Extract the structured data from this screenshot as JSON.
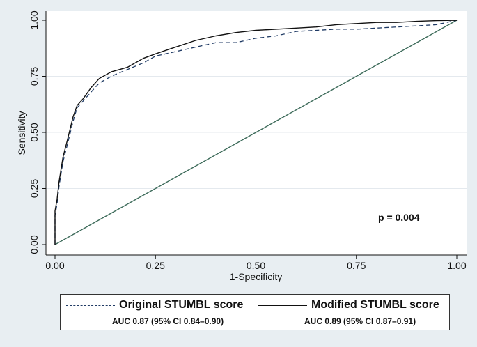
{
  "chart_data": {
    "type": "line",
    "xlabel": "1-Specificity",
    "ylabel": "Sensitivity",
    "xlim": [
      0,
      1
    ],
    "ylim": [
      0,
      1
    ],
    "x_ticks": [
      "0.00",
      "0.25",
      "0.50",
      "0.75",
      "1.00"
    ],
    "y_ticks": [
      "0.00",
      "0.25",
      "0.50",
      "0.75",
      "1.00"
    ],
    "annotation": "p = 0.004",
    "legend_position": "bottom",
    "series": [
      {
        "name": "Original STUMBL score",
        "auc_label": "AUC 0.87 (95% CI 0.84–0.90)",
        "style": "dashed",
        "color": "#1f3a64",
        "x": [
          0,
          0,
          0.005,
          0.01,
          0.02,
          0.03,
          0.045,
          0.055,
          0.07,
          0.09,
          0.11,
          0.14,
          0.18,
          0.22,
          0.25,
          0.3,
          0.35,
          0.4,
          0.45,
          0.5,
          0.55,
          0.6,
          0.65,
          0.7,
          0.75,
          0.8,
          0.85,
          0.9,
          0.95,
          1.0
        ],
        "y": [
          0,
          0.13,
          0.18,
          0.26,
          0.37,
          0.44,
          0.55,
          0.61,
          0.64,
          0.68,
          0.72,
          0.75,
          0.78,
          0.81,
          0.84,
          0.86,
          0.88,
          0.9,
          0.9,
          0.92,
          0.93,
          0.95,
          0.955,
          0.96,
          0.96,
          0.965,
          0.97,
          0.975,
          0.98,
          1.0
        ]
      },
      {
        "name": "Modified STUMBL score",
        "auc_label": "AUC 0.89 (95% CI 0.87–0.91)",
        "style": "solid",
        "color": "#111111",
        "x": [
          0,
          0,
          0.005,
          0.01,
          0.02,
          0.03,
          0.045,
          0.055,
          0.07,
          0.09,
          0.11,
          0.14,
          0.18,
          0.22,
          0.25,
          0.3,
          0.35,
          0.4,
          0.45,
          0.5,
          0.55,
          0.6,
          0.65,
          0.7,
          0.75,
          0.8,
          0.85,
          0.9,
          0.95,
          1.0
        ],
        "y": [
          0,
          0.15,
          0.2,
          0.28,
          0.39,
          0.46,
          0.57,
          0.62,
          0.65,
          0.7,
          0.74,
          0.77,
          0.79,
          0.83,
          0.85,
          0.88,
          0.91,
          0.93,
          0.945,
          0.955,
          0.96,
          0.965,
          0.97,
          0.98,
          0.985,
          0.99,
          0.99,
          0.995,
          0.998,
          1.0
        ]
      },
      {
        "name": "",
        "style": "solid",
        "color": "#3d6b5a",
        "x": [
          0,
          1
        ],
        "y": [
          0,
          1
        ]
      }
    ]
  }
}
